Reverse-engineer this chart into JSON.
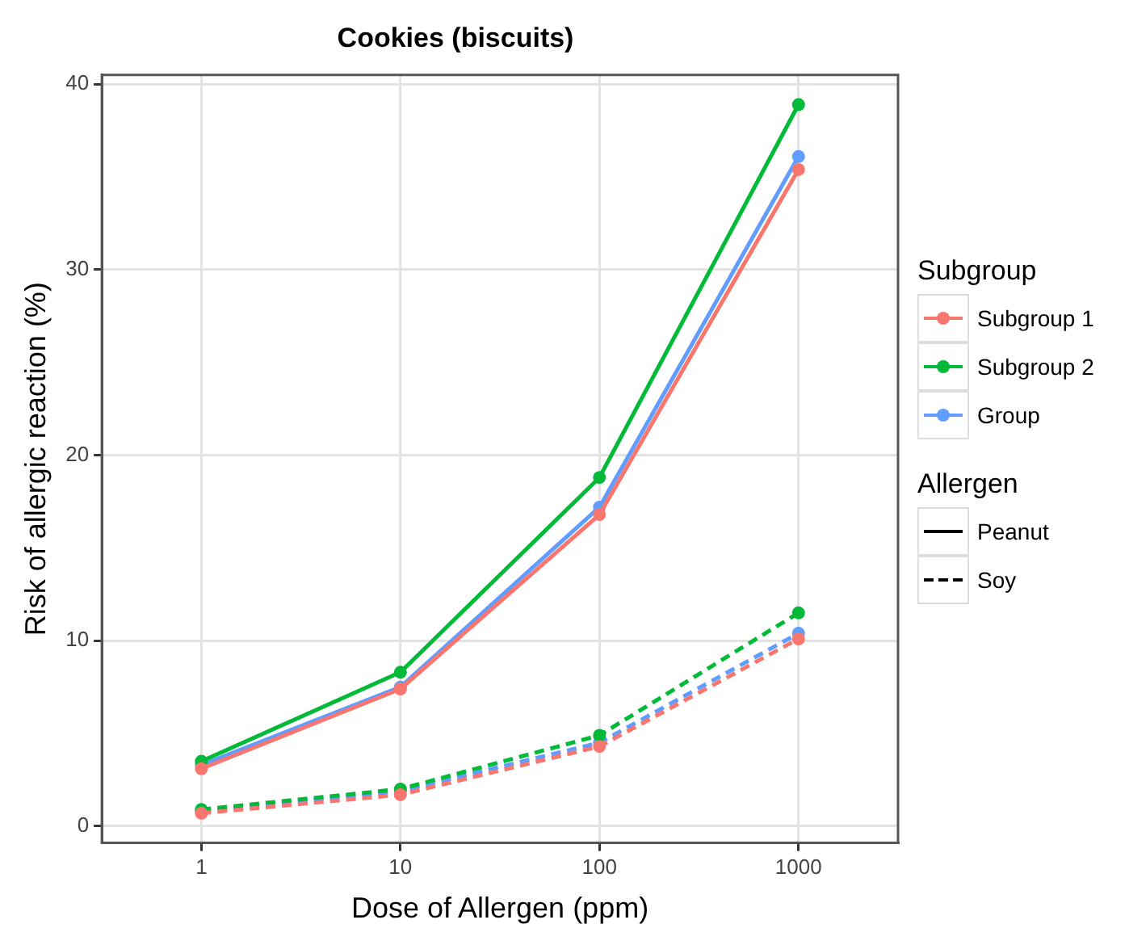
{
  "chart_data": {
    "type": "line",
    "title": "Cookies (biscuits)",
    "xlabel": "Dose of Allergen (ppm)",
    "ylabel": "Risk of allergic reaction (%)",
    "legend_title": "Subgroup",
    "categories": [
      "1",
      "10",
      "100",
      "1000"
    ],
    "series": [
      {
        "name": "Subgroup 1",
        "color": "#f8766d",
        "line_style": "solid",
        "values": [
          3.1,
          7.4,
          16.8,
          35.4
        ]
      },
      {
        "name": "Subgroup 2",
        "color": "#00ba38",
        "line_style": "solid",
        "values": [
          3.5,
          8.3,
          18.8,
          38.9
        ]
      },
      {
        "name": "Group",
        "color": "#619cff",
        "line_style": "solid",
        "values": [
          3.3,
          7.5,
          17.2,
          36.1
        ]
      },
      {
        "color": "#f8766d",
        "line_style": "dashed",
        "values": [
          0.7,
          1.7,
          4.3,
          10.1
        ]
      },
      {
        "color": "#00ba38",
        "line_style": "dashed",
        "values": [
          0.9,
          2.0,
          4.9,
          11.5
        ]
      },
      {
        "color": "#619cff",
        "line_style": "dashed",
        "values": [
          0.8,
          1.9,
          4.5,
          10.4
        ]
      }
    ],
    "annotations": [
      "Allergen",
      "Peanut",
      "Soy"
    ],
    "ylim": [
      -0.9,
      40.5
    ],
    "yticks": [
      0,
      10,
      20,
      30,
      40
    ],
    "grid": true,
    "legend": "right",
    "marker": "circle"
  }
}
